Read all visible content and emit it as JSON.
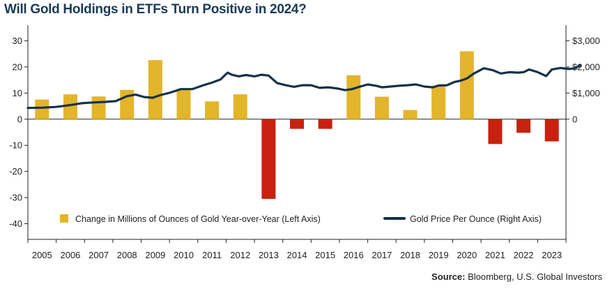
{
  "header": {
    "title": "Will Gold Holdings in ETFs Turn Positive in 2024?"
  },
  "footer": {
    "source_label": "Source:",
    "source_text": "Bloomberg, U.S. Global Investors"
  },
  "colors": {
    "title": "#1b3a57",
    "positive_bar": "#e3b52b",
    "negative_bar": "#c8210f",
    "price_line": "#15314c",
    "axis": "#222222"
  },
  "chart_data": {
    "type": "bar",
    "categories": [
      "2005",
      "2006",
      "2007",
      "2008",
      "2009",
      "2010",
      "2011",
      "2012",
      "2013",
      "2014",
      "2015",
      "2016",
      "2017",
      "2018",
      "2019",
      "2020",
      "2021",
      "2022",
      "2023"
    ],
    "series": [
      {
        "name": "Change in Millions of Ounces of Gold Year-over-Year (Left Axis)",
        "axis": "left",
        "type": "bar",
        "values": [
          7.5,
          9.5,
          8.7,
          11.2,
          22.6,
          11.5,
          6.8,
          9.5,
          -30.5,
          -3.7,
          -3.7,
          16.8,
          8.6,
          3.5,
          12.8,
          26.0,
          -9.5,
          -5.2,
          -8.5
        ]
      },
      {
        "name": "Gold Price Per Ounce (Right Axis)",
        "axis": "right",
        "type": "line",
        "x": [
          2004.5,
          2005.0,
          2005.5,
          2006.0,
          2006.4,
          2006.8,
          2007.2,
          2007.6,
          2008.0,
          2008.3,
          2008.6,
          2008.9,
          2009.2,
          2009.5,
          2009.9,
          2010.3,
          2010.7,
          2011.0,
          2011.3,
          2011.55,
          2011.7,
          2011.95,
          2012.2,
          2012.5,
          2012.75,
          2013.0,
          2013.3,
          2013.6,
          2013.9,
          2014.2,
          2014.5,
          2014.8,
          2015.1,
          2015.4,
          2015.7,
          2015.95,
          2016.2,
          2016.5,
          2016.8,
          2017.0,
          2017.3,
          2017.6,
          2017.9,
          2018.2,
          2018.5,
          2018.8,
          2019.0,
          2019.3,
          2019.55,
          2019.8,
          2020.0,
          2020.25,
          2020.6,
          2020.9,
          2021.2,
          2021.5,
          2021.8,
          2022.0,
          2022.2,
          2022.5,
          2022.8,
          2023.0,
          2023.3,
          2023.6,
          2023.8,
          2024.0
        ],
        "values": [
          430,
          440,
          470,
          540,
          610,
          640,
          660,
          690,
          880,
          940,
          850,
          820,
          930,
          1010,
          1150,
          1150,
          1300,
          1400,
          1520,
          1780,
          1700,
          1640,
          1690,
          1640,
          1700,
          1670,
          1380,
          1300,
          1240,
          1300,
          1300,
          1200,
          1220,
          1180,
          1110,
          1150,
          1240,
          1330,
          1280,
          1220,
          1250,
          1280,
          1300,
          1330,
          1250,
          1220,
          1290,
          1300,
          1420,
          1480,
          1560,
          1750,
          1950,
          1880,
          1750,
          1800,
          1780,
          1800,
          1900,
          1800,
          1650,
          1900,
          1960,
          1920,
          1950,
          2050
        ]
      }
    ],
    "left_axis": {
      "ticks": [
        30,
        20,
        10,
        0,
        -10,
        -20,
        -30,
        -40
      ],
      "tick_labels": [
        "30",
        "20",
        "10",
        "0",
        "-10",
        "-20",
        "-30",
        "-40"
      ],
      "range": [
        -46,
        36
      ]
    },
    "right_axis": {
      "ticks": [
        3000,
        2000,
        1000,
        0
      ],
      "tick_labels": [
        "$3,000",
        "$2,000",
        "$1,000",
        "0"
      ],
      "range": [
        -4600,
        3600
      ]
    },
    "legend": {
      "placement": "bottom-inside",
      "items": [
        {
          "label": "Change in Millions of Ounces of Gold Year-over-Year (Left Axis)",
          "kind": "bar"
        },
        {
          "label": "Gold Price Per Ounce (Right Axis)",
          "kind": "line"
        }
      ]
    },
    "grid": false
  }
}
